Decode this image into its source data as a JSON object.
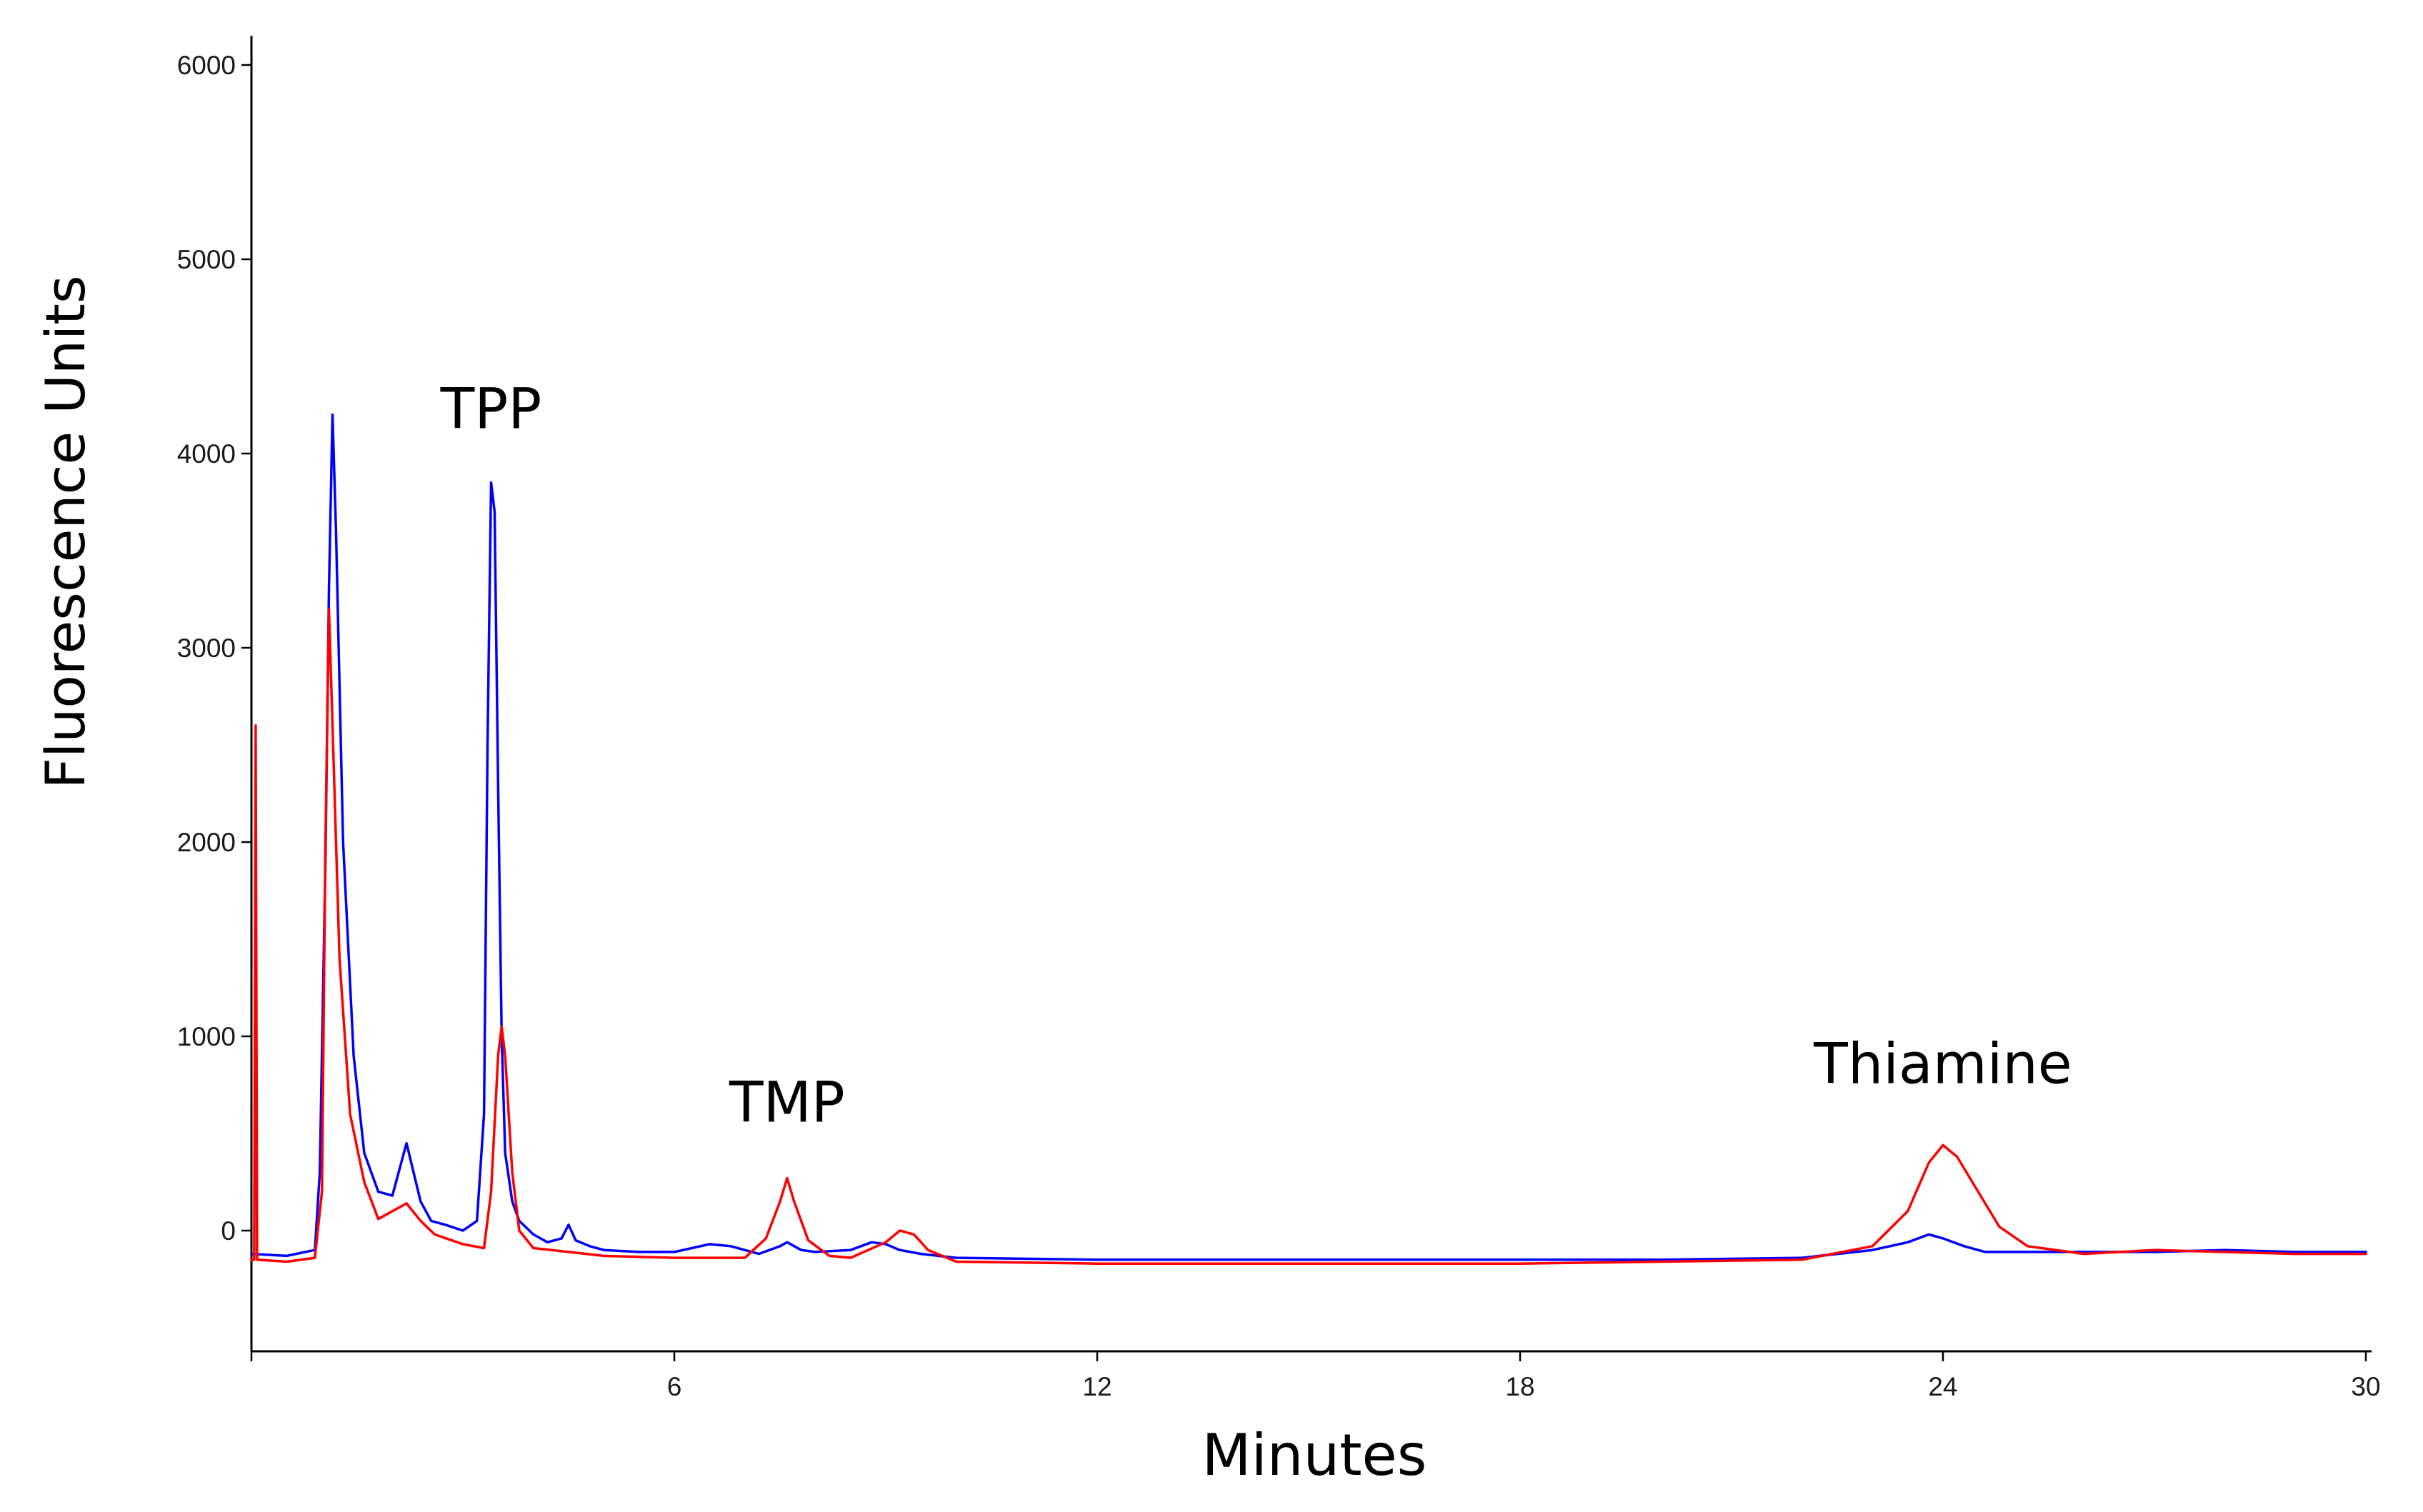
{
  "chart_data": {
    "type": "line",
    "title": "",
    "xlabel": "Minutes",
    "ylabel": "Fluorescence Units",
    "xlim": [
      0,
      30
    ],
    "ylim": [
      -600,
      6200
    ],
    "x_ticks": [
      6,
      12,
      18,
      24,
      30
    ],
    "y_ticks": [
      0,
      1000,
      2000,
      3000,
      4000,
      5000,
      6000
    ],
    "grid": false,
    "legend": "none",
    "series": [
      {
        "color": "#0000ff",
        "x": [
          0,
          0.5,
          0.9,
          0.97,
          1.05,
          1.1,
          1.15,
          1.2,
          1.3,
          1.45,
          1.6,
          1.8,
          2.0,
          2.2,
          2.4,
          2.55,
          2.75,
          3.0,
          3.2,
          3.3,
          3.35,
          3.4,
          3.45,
          3.5,
          3.55,
          3.6,
          3.7,
          3.8,
          4.0,
          4.2,
          4.4,
          4.5,
          4.6,
          4.8,
          5.0,
          5.5,
          6.0,
          6.5,
          6.8,
          7.2,
          7.5,
          7.6,
          7.8,
          8.0,
          8.5,
          8.8,
          9.0,
          9.2,
          9.5,
          10,
          12,
          14,
          16,
          18,
          20,
          22,
          23.0,
          23.5,
          23.8,
          24.0,
          24.3,
          24.6,
          25,
          26,
          27,
          28,
          29,
          30
        ],
        "y": [
          -120,
          -130,
          -100,
          300,
          1900,
          3300,
          4200,
          3600,
          2000,
          900,
          400,
          200,
          180,
          450,
          150,
          50,
          30,
          0,
          50,
          600,
          2500,
          3850,
          3700,
          2300,
          1000,
          400,
          150,
          50,
          -20,
          -60,
          -40,
          30,
          -50,
          -80,
          -100,
          -110,
          -110,
          -70,
          -80,
          -120,
          -80,
          -60,
          -100,
          -110,
          -100,
          -60,
          -70,
          -100,
          -120,
          -140,
          -150,
          -150,
          -150,
          -150,
          -150,
          -140,
          -100,
          -60,
          -20,
          -40,
          -80,
          -110,
          -110,
          -110,
          -110,
          -100,
          -110,
          -110
        ]
      },
      {
        "color": "#ff0000",
        "x": [
          0,
          0.04,
          0.06,
          0.08,
          0.5,
          0.9,
          1.0,
          1.05,
          1.1,
          1.15,
          1.25,
          1.4,
          1.6,
          1.8,
          2.0,
          2.2,
          2.4,
          2.6,
          3.0,
          3.3,
          3.4,
          3.5,
          3.55,
          3.6,
          3.7,
          3.8,
          4.0,
          4.5,
          5.0,
          6.0,
          7.0,
          7.3,
          7.5,
          7.6,
          7.7,
          7.9,
          8.2,
          8.5,
          9.0,
          9.2,
          9.4,
          9.6,
          10,
          12,
          14,
          16,
          18,
          20,
          22,
          23.0,
          23.5,
          23.8,
          24.0,
          24.2,
          24.5,
          24.8,
          25.2,
          26,
          27,
          28,
          29,
          30
        ],
        "y": [
          -150,
          -150,
          2600,
          -150,
          -160,
          -140,
          200,
          2000,
          3200,
          2600,
          1400,
          600,
          250,
          60,
          100,
          140,
          50,
          -20,
          -70,
          -90,
          200,
          900,
          1050,
          900,
          300,
          0,
          -90,
          -110,
          -130,
          -140,
          -140,
          -40,
          150,
          270,
          150,
          -50,
          -130,
          -140,
          -60,
          0,
          -20,
          -100,
          -160,
          -170,
          -170,
          -170,
          -170,
          -160,
          -150,
          -80,
          100,
          350,
          440,
          380,
          200,
          20,
          -80,
          -120,
          -100,
          -110,
          -120,
          -120
        ]
      }
    ],
    "annotations": [
      {
        "text": "TPP",
        "x": 3.4,
        "y": 4130
      },
      {
        "text": "TMP",
        "x": 7.6,
        "y": 560
      },
      {
        "text": "Thiamine",
        "x": 24.0,
        "y": 760
      }
    ]
  }
}
